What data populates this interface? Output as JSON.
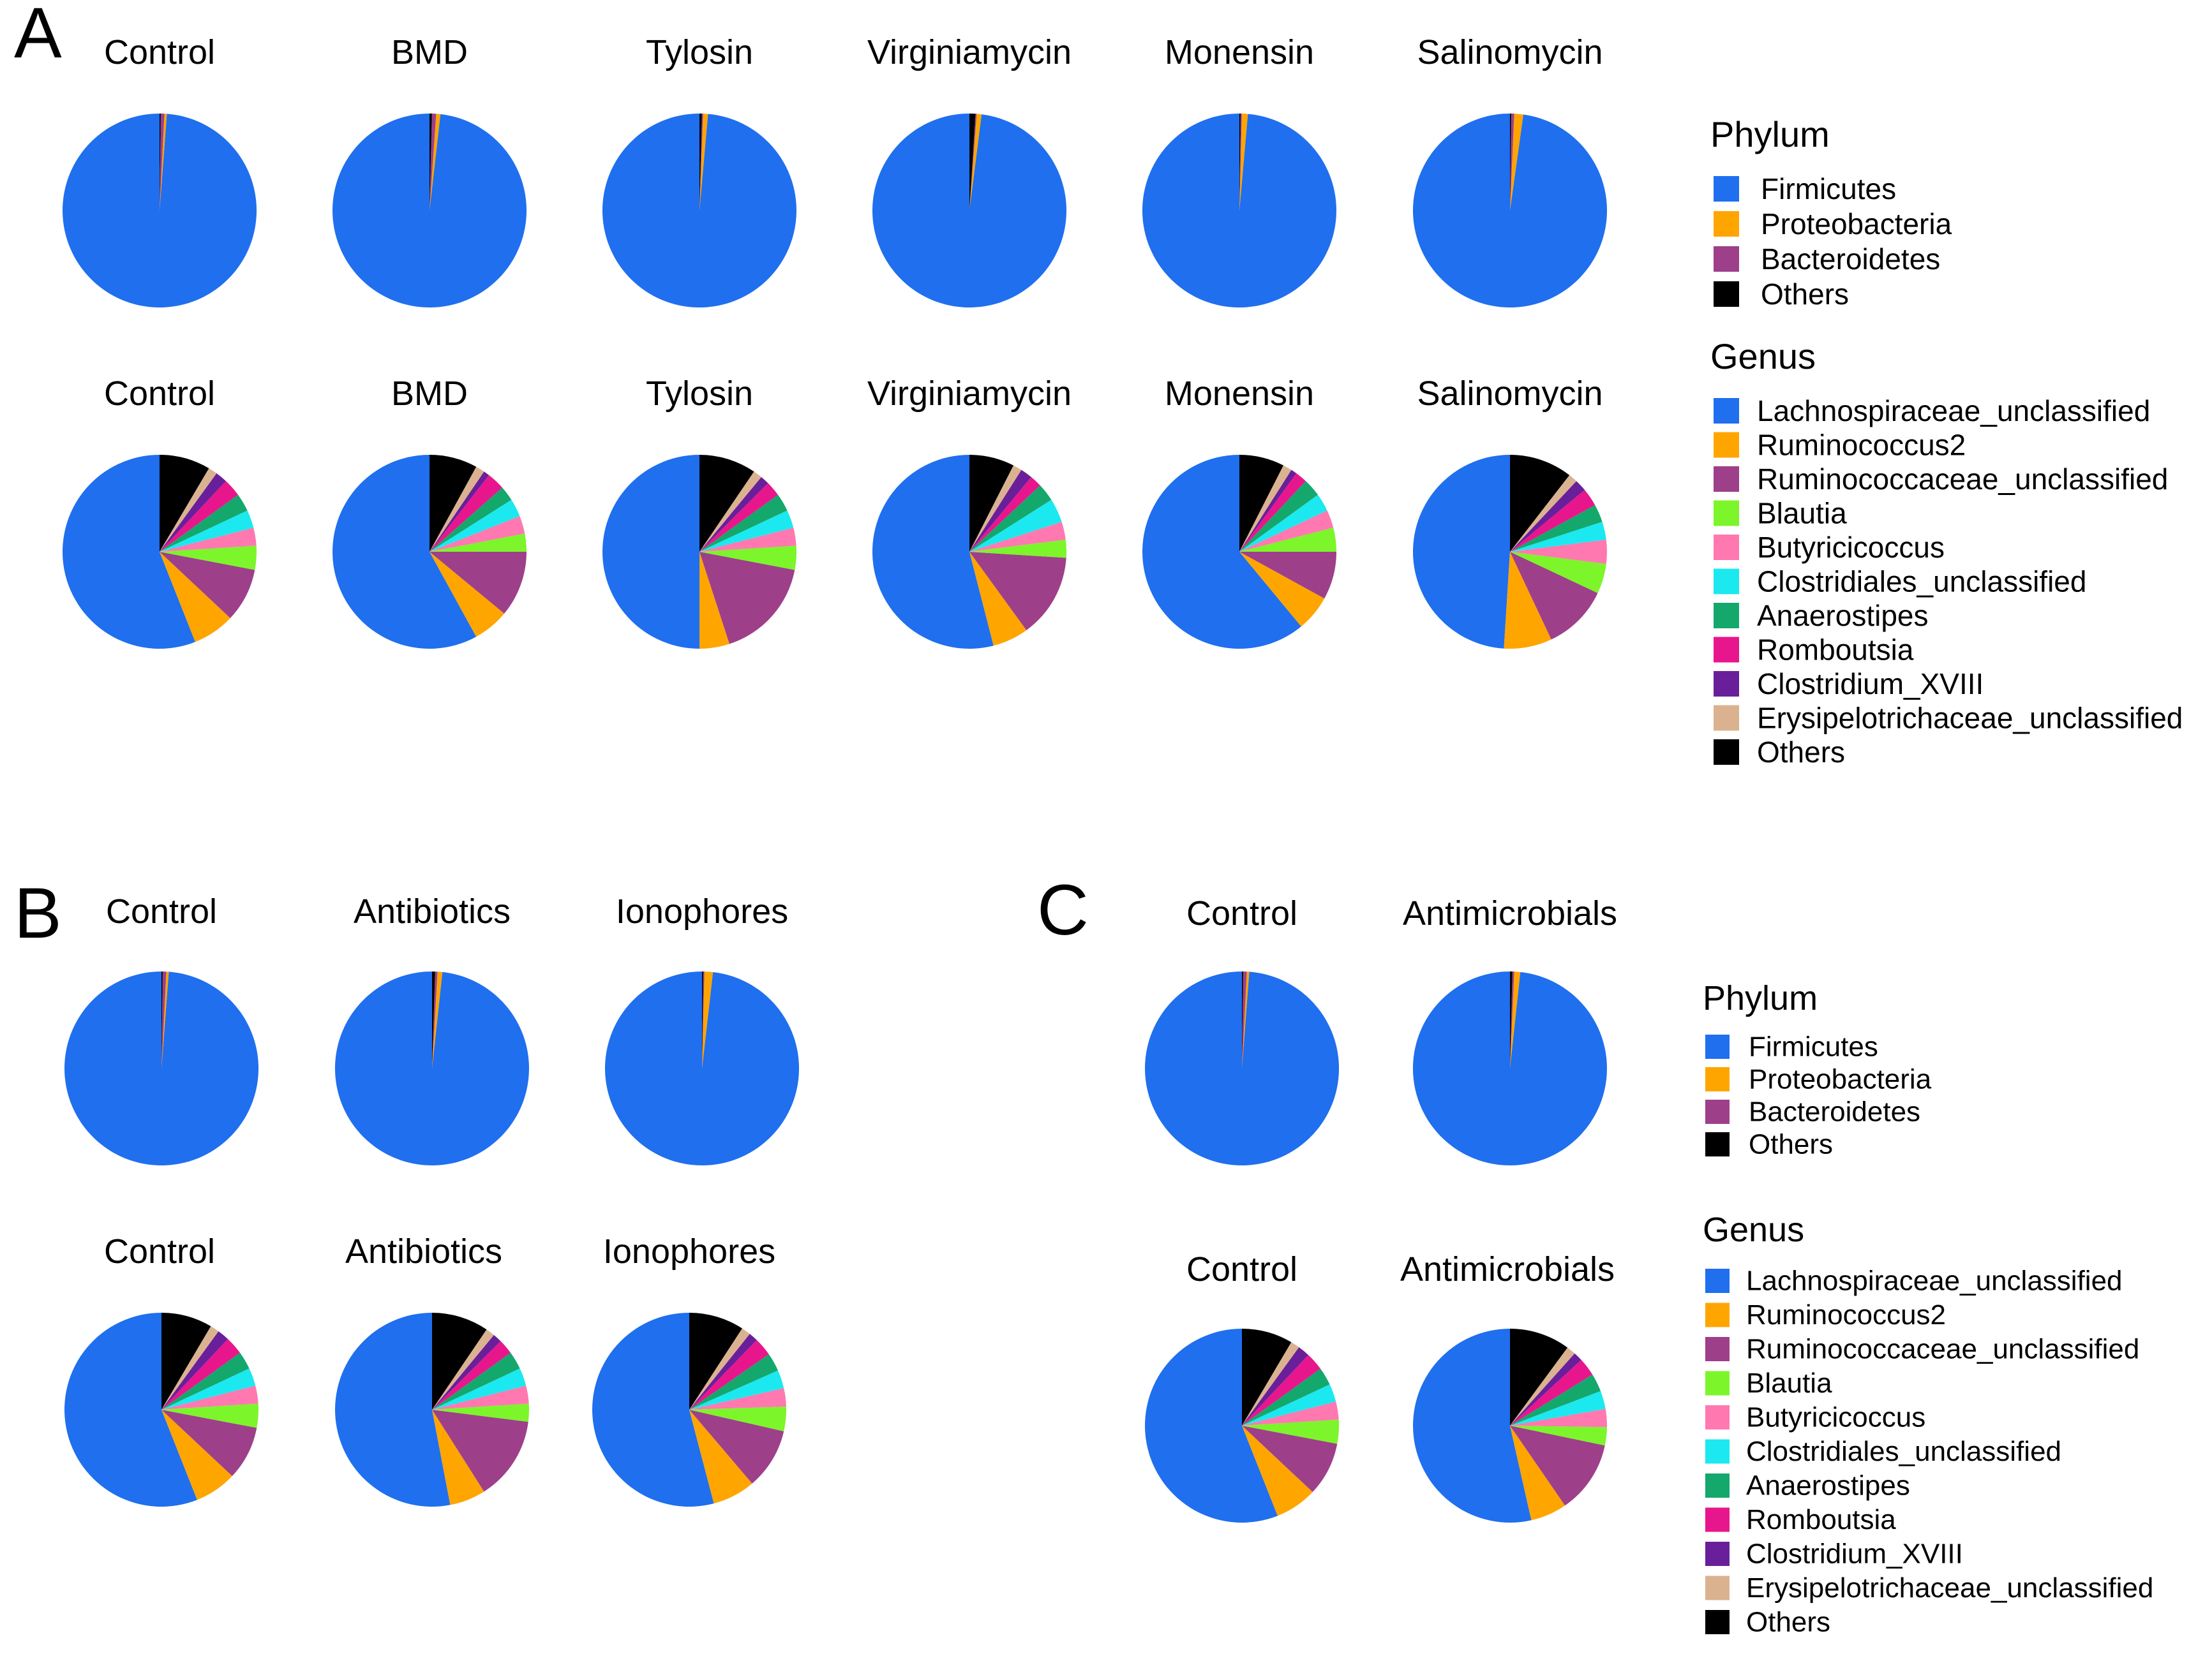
{
  "panels": [
    {
      "letter": "A"
    },
    {
      "letter": "B"
    },
    {
      "letter": "C"
    }
  ],
  "legends": {
    "phylum_title": "Phylum",
    "genus_title": "Genus",
    "phylum_items": [
      {
        "label": "Firmicutes",
        "color": "#1f6fef"
      },
      {
        "label": "Proteobacteria",
        "color": "#ffa500"
      },
      {
        "label": "Bacteroidetes",
        "color": "#9e3f8a"
      },
      {
        "label": "Others",
        "color": "#000000"
      }
    ],
    "genus_items": [
      {
        "label": "Lachnospiraceae_unclassified",
        "color": "#1f6fef"
      },
      {
        "label": "Ruminococcus2",
        "color": "#ffa500"
      },
      {
        "label": "Ruminococcaceae_unclassified",
        "color": "#9e3f8a"
      },
      {
        "label": "Blautia",
        "color": "#7cf52a"
      },
      {
        "label": "Butyricicoccus",
        "color": "#ff79b0"
      },
      {
        "label": "Clostridiales_unclassified",
        "color": "#1ce8f0"
      },
      {
        "label": "Anaerostipes",
        "color": "#14a86c"
      },
      {
        "label": "Romboutsia",
        "color": "#e8168c"
      },
      {
        "label": "Clostridium_XVIII",
        "color": "#6a1f9a"
      },
      {
        "label": "Erysipelotrichaceae_unclassified",
        "color": "#dbb290"
      },
      {
        "label": "Others",
        "color": "#000000"
      }
    ]
  },
  "chart_data": [
    {
      "type": "pie",
      "panel": "A",
      "level": "Phylum",
      "slice_labels": [
        "Firmicutes",
        "Proteobacteria",
        "Bacteroidetes",
        "Others"
      ],
      "groups": [
        {
          "title": "Control",
          "values": [
            98.8,
            0.4,
            0.6,
            0.2
          ]
        },
        {
          "title": "BMD",
          "values": [
            98.2,
            0.7,
            0.7,
            0.4
          ]
        },
        {
          "title": "Tylosin",
          "values": [
            98.6,
            0.8,
            0.2,
            0.4
          ]
        },
        {
          "title": "Virginiamycin",
          "values": [
            98.0,
            0.8,
            0.2,
            1.0
          ]
        },
        {
          "title": "Monensin",
          "values": [
            98.6,
            1.0,
            0.2,
            0.2
          ]
        },
        {
          "title": "Salinomycin",
          "values": [
            97.8,
            1.5,
            0.5,
            0.2
          ]
        }
      ]
    },
    {
      "type": "pie",
      "panel": "A",
      "level": "Genus",
      "slice_labels": [
        "Lachnospiraceae_unclassified",
        "Ruminococcus2",
        "Ruminococcaceae_unclassified",
        "Blautia",
        "Butyricicoccus",
        "Clostridiales_unclassified",
        "Anaerostipes",
        "Romboutsia",
        "Clostridium_XVIII",
        "Erysipelotrichaceae_unclassified",
        "Others"
      ],
      "groups": [
        {
          "title": "Control",
          "values": [
            56,
            7,
            9,
            4,
            3,
            3,
            3,
            3,
            2,
            1.5,
            8.5
          ]
        },
        {
          "title": "BMD",
          "values": [
            58,
            6,
            11,
            3,
            3,
            3,
            2.5,
            3,
            1,
            1.5,
            8
          ]
        },
        {
          "title": "Tylosin",
          "values": [
            50,
            5,
            17,
            4,
            3,
            3,
            3,
            2.5,
            1.5,
            1.5,
            9.5
          ]
        },
        {
          "title": "Virginiamycin",
          "values": [
            54,
            6,
            14,
            3,
            3,
            4,
            3,
            2,
            2,
            1.5,
            7.5
          ]
        },
        {
          "title": "Monensin",
          "values": [
            61,
            6,
            8,
            4,
            3,
            3,
            3,
            2,
            1,
            1.5,
            7.5
          ]
        },
        {
          "title": "Salinomycin",
          "values": [
            49,
            8,
            11,
            5,
            4,
            3,
            3,
            3,
            2,
            1.5,
            10.5
          ]
        }
      ]
    },
    {
      "type": "pie",
      "panel": "B",
      "level": "Phylum",
      "slice_labels": [
        "Firmicutes",
        "Proteobacteria",
        "Bacteroidetes",
        "Others"
      ],
      "groups": [
        {
          "title": "Control",
          "values": [
            98.8,
            0.4,
            0.6,
            0.2
          ]
        },
        {
          "title": "Antibiotics",
          "values": [
            98.3,
            0.8,
            0.4,
            0.5
          ]
        },
        {
          "title": "Ionophores",
          "values": [
            98.2,
            1.4,
            0.2,
            0.2
          ]
        }
      ]
    },
    {
      "type": "pie",
      "panel": "B",
      "level": "Genus",
      "slice_labels": [
        "Lachnospiraceae_unclassified",
        "Ruminococcus2",
        "Ruminococcaceae_unclassified",
        "Blautia",
        "Butyricicoccus",
        "Clostridiales_unclassified",
        "Anaerostipes",
        "Romboutsia",
        "Clostridium_XVIII",
        "Erysipelotrichaceae_unclassified",
        "Others"
      ],
      "groups": [
        {
          "title": "Control",
          "values": [
            56,
            7,
            9,
            4,
            3,
            3,
            3,
            3,
            2,
            1.5,
            8.5
          ]
        },
        {
          "title": "Antibiotics",
          "values": [
            53,
            6,
            14,
            3,
            3,
            3,
            3,
            2.5,
            1.5,
            1.5,
            9.5
          ]
        },
        {
          "title": "Ionophores",
          "values": [
            53,
            7,
            10,
            4,
            3,
            3,
            3,
            3,
            1.5,
            1.5,
            9
          ]
        }
      ]
    },
    {
      "type": "pie",
      "panel": "C",
      "level": "Phylum",
      "slice_labels": [
        "Firmicutes",
        "Proteobacteria",
        "Bacteroidetes",
        "Others"
      ],
      "groups": [
        {
          "title": "Control",
          "values": [
            98.8,
            0.4,
            0.6,
            0.2
          ]
        },
        {
          "title": "Antimicrobials",
          "values": [
            98.3,
            1.0,
            0.3,
            0.4
          ]
        }
      ]
    },
    {
      "type": "pie",
      "panel": "C",
      "level": "Genus",
      "slice_labels": [
        "Lachnospiraceae_unclassified",
        "Ruminococcus2",
        "Ruminococcaceae_unclassified",
        "Blautia",
        "Butyricicoccus",
        "Clostridiales_unclassified",
        "Anaerostipes",
        "Romboutsia",
        "Clostridium_XVIII",
        "Erysipelotrichaceae_unclassified",
        "Others"
      ],
      "groups": [
        {
          "title": "Control",
          "values": [
            56,
            7,
            9,
            4,
            3,
            3,
            3,
            3,
            2,
            1.5,
            8.5
          ]
        },
        {
          "title": "Antimicrobials",
          "values": [
            53,
            6,
            12,
            3,
            3,
            3,
            3,
            3,
            1.5,
            1.5,
            10
          ]
        }
      ]
    }
  ]
}
